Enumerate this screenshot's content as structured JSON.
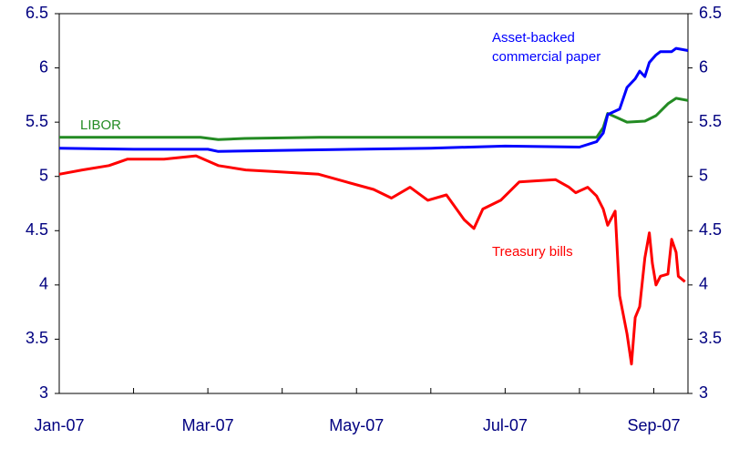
{
  "chart_data": {
    "type": "line",
    "xlim": [
      0,
      8.46
    ],
    "xticks": [
      {
        "value": 0,
        "label": "Jan-07"
      },
      {
        "value": 2,
        "label": "Mar-07"
      },
      {
        "value": 4,
        "label": "May-07"
      },
      {
        "value": 6,
        "label": "Jul-07"
      },
      {
        "value": 8,
        "label": "Sep-07"
      }
    ],
    "xminorticks": [
      1,
      3,
      5,
      7
    ],
    "ylim": [
      3,
      6.5
    ],
    "yticks": [
      3,
      3.5,
      4,
      4.5,
      5,
      5.5,
      6,
      6.5
    ],
    "y2lim": [
      3,
      6.5
    ],
    "y2ticks": [
      3,
      3.5,
      4,
      4.5,
      5,
      5.5,
      6,
      6.5
    ],
    "series": [
      {
        "label_lines": [
          "LIBOR"
        ],
        "color": "#238b23",
        "x": [
          0,
          1.9,
          2.14,
          2.5,
          3.5,
          7.23,
          7.32,
          7.38,
          7.48,
          7.64,
          7.88,
          8.03,
          8.19,
          8.3,
          8.46
        ],
        "values": [
          5.36,
          5.36,
          5.34,
          5.35,
          5.36,
          5.36,
          5.45,
          5.58,
          5.55,
          5.5,
          5.51,
          5.56,
          5.67,
          5.72,
          5.7
        ]
      },
      {
        "label_lines": [
          "Asset-backed",
          "commercial paper"
        ],
        "color": "#0000ff",
        "x": [
          0,
          1.0,
          2.0,
          2.14,
          3.0,
          4.0,
          5.0,
          6.0,
          7.0,
          7.23,
          7.32,
          7.38,
          7.54,
          7.64,
          7.75,
          7.81,
          7.88,
          7.94,
          8.03,
          8.09,
          8.24,
          8.3,
          8.46
        ],
        "values": [
          5.26,
          5.25,
          5.25,
          5.23,
          5.24,
          5.25,
          5.26,
          5.28,
          5.27,
          5.32,
          5.4,
          5.57,
          5.62,
          5.82,
          5.9,
          5.97,
          5.92,
          6.05,
          6.12,
          6.15,
          6.15,
          6.18,
          6.16
        ]
      },
      {
        "label_lines": [
          "Treasury bills"
        ],
        "color": "#ff0000",
        "x": [
          0,
          0.31,
          0.67,
          0.92,
          1.41,
          1.84,
          2.14,
          2.51,
          3.0,
          3.49,
          3.86,
          4.23,
          4.47,
          4.72,
          4.96,
          5.21,
          5.45,
          5.58,
          5.7,
          5.94,
          6.19,
          6.43,
          6.68,
          6.86,
          6.95,
          7.11,
          7.23,
          7.32,
          7.38,
          7.48,
          7.54,
          7.64,
          7.7,
          7.75,
          7.81,
          7.88,
          7.94,
          7.98,
          8.03,
          8.09,
          8.19,
          8.24,
          8.3,
          8.33,
          8.42
        ],
        "values": [
          5.02,
          5.06,
          5.1,
          5.16,
          5.16,
          5.19,
          5.1,
          5.06,
          5.04,
          5.02,
          4.95,
          4.88,
          4.8,
          4.9,
          4.78,
          4.83,
          4.6,
          4.52,
          4.7,
          4.78,
          4.95,
          4.96,
          4.97,
          4.9,
          4.85,
          4.9,
          4.82,
          4.7,
          4.55,
          4.68,
          3.9,
          3.55,
          3.27,
          3.7,
          3.8,
          4.25,
          4.48,
          4.2,
          4.0,
          4.08,
          4.1,
          4.42,
          4.3,
          4.08,
          4.03
        ]
      }
    ]
  }
}
